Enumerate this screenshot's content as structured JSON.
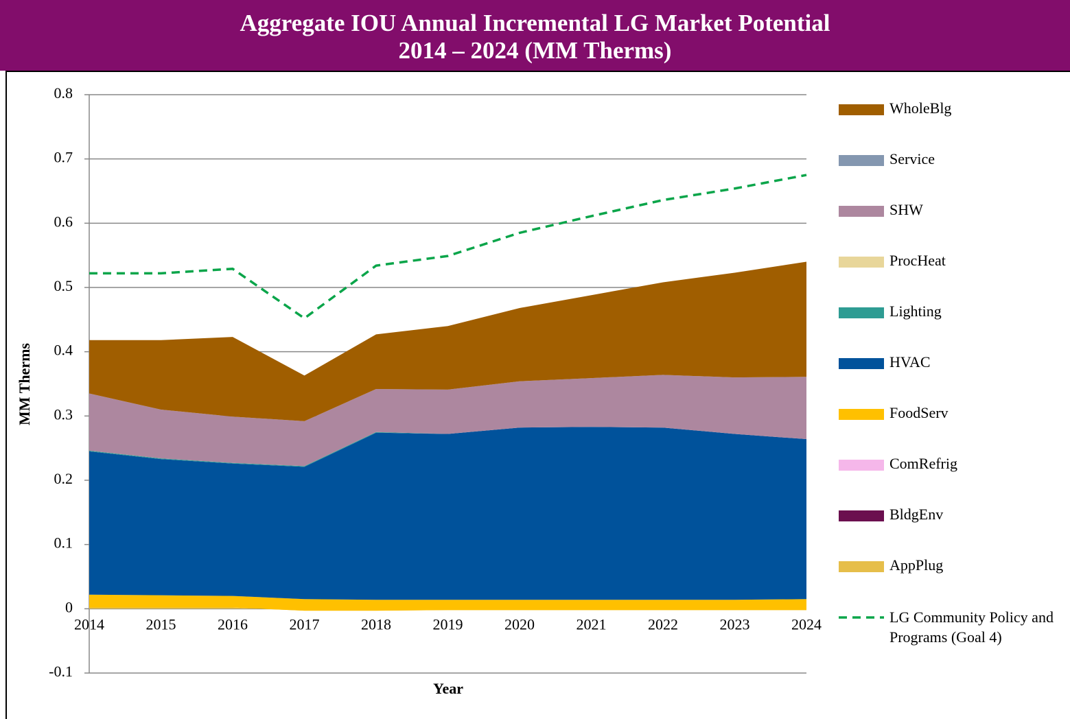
{
  "chart_data": {
    "type": "stacked_area",
    "title": "Aggregate IOU Annual Incremental LG Market Potential",
    "subtitle": "2014 – 2024 (MM Therms)",
    "x_label": "Year",
    "y_label": "MM Therms",
    "categories": [
      "2014",
      "2015",
      "2016",
      "2017",
      "2018",
      "2019",
      "2020",
      "2021",
      "2022",
      "2023",
      "2024"
    ],
    "ylim": [
      -0.1,
      0.8
    ],
    "yticks": [
      -0.1,
      0,
      0.1,
      0.2,
      0.3,
      0.4,
      0.5,
      0.6,
      0.7,
      0.8
    ],
    "grid": true,
    "legend": "right",
    "series": [
      {
        "name": "AppPlug",
        "color": "#E6BE4A",
        "values": [
          0.002,
          0.002,
          0.002,
          -0.003,
          -0.003,
          -0.002,
          -0.002,
          -0.002,
          -0.002,
          -0.002,
          -0.002
        ]
      },
      {
        "name": "BldgEnv",
        "color": "#6B0F4F",
        "values": [
          0,
          0,
          0,
          0,
          0,
          0,
          0,
          0,
          0,
          0,
          0
        ]
      },
      {
        "name": "ComRefrig",
        "color": "#F5B7EA",
        "values": [
          0,
          0,
          0,
          0,
          0,
          0,
          0,
          0,
          0,
          0,
          0
        ]
      },
      {
        "name": "FoodServ",
        "color": "#FFC000",
        "values": [
          0.02,
          0.019,
          0.018,
          0.018,
          0.017,
          0.016,
          0.016,
          0.016,
          0.016,
          0.016,
          0.017
        ]
      },
      {
        "name": "HVAC",
        "color": "#00529B",
        "values": [
          0.223,
          0.212,
          0.206,
          0.206,
          0.26,
          0.258,
          0.268,
          0.269,
          0.268,
          0.258,
          0.249
        ]
      },
      {
        "name": "Lighting",
        "color": "#2E9C93",
        "values": [
          0.001,
          0.001,
          0.001,
          0.001,
          0.001,
          0,
          0,
          0,
          0,
          0,
          0
        ]
      },
      {
        "name": "ProcHeat",
        "color": "#E8D69A",
        "values": [
          0,
          0,
          0,
          0,
          0,
          0,
          0,
          0,
          0,
          0,
          0
        ]
      },
      {
        "name": "SHW",
        "color": "#AD879F",
        "values": [
          0.089,
          0.076,
          0.072,
          0.07,
          0.067,
          0.069,
          0.072,
          0.076,
          0.082,
          0.088,
          0.097
        ]
      },
      {
        "name": "Service",
        "color": "#8497B0",
        "values": [
          0,
          0,
          0,
          0,
          0,
          0,
          0,
          0,
          0,
          0,
          0
        ]
      },
      {
        "name": "WholeBlg",
        "color": "#A05E00",
        "values": [
          0.083,
          0.108,
          0.124,
          0.071,
          0.085,
          0.099,
          0.114,
          0.129,
          0.144,
          0.163,
          0.179
        ]
      },
      {
        "name": "LG Community Policy and Programs (Goal 4)",
        "color": "#0BA54A",
        "kind": "line",
        "dashed": true,
        "values": [
          0.522,
          0.522,
          0.529,
          0.452,
          0.534,
          0.549,
          0.585,
          0.611,
          0.636,
          0.654,
          0.675
        ]
      }
    ]
  }
}
